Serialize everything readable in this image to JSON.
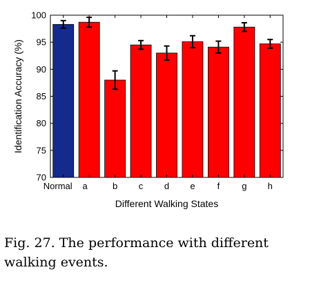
{
  "chart_data": {
    "type": "bar",
    "title": "",
    "xlabel": "Different Walking States",
    "ylabel": "Identification Accuracy (%)",
    "categories": [
      "Normal",
      "a",
      "b",
      "c",
      "d",
      "e",
      "f",
      "g",
      "h"
    ],
    "values": [
      98.3,
      98.7,
      88.0,
      94.5,
      93.0,
      95.1,
      94.1,
      97.8,
      94.7
    ],
    "errors": [
      0.7,
      0.9,
      1.7,
      0.8,
      1.3,
      1.1,
      1.1,
      0.8,
      0.8
    ],
    "ylim": [
      70,
      100
    ],
    "yticks": [
      70,
      75,
      80,
      85,
      90,
      95,
      100
    ],
    "bar_colors": [
      "#142a8c",
      "#ff0000",
      "#ff0000",
      "#ff0000",
      "#ff0000",
      "#ff0000",
      "#ff0000",
      "#ff0000",
      "#ff0000"
    ],
    "grid": false,
    "legend": "none"
  },
  "caption": "Fig. 27.  The performance with different walking events."
}
